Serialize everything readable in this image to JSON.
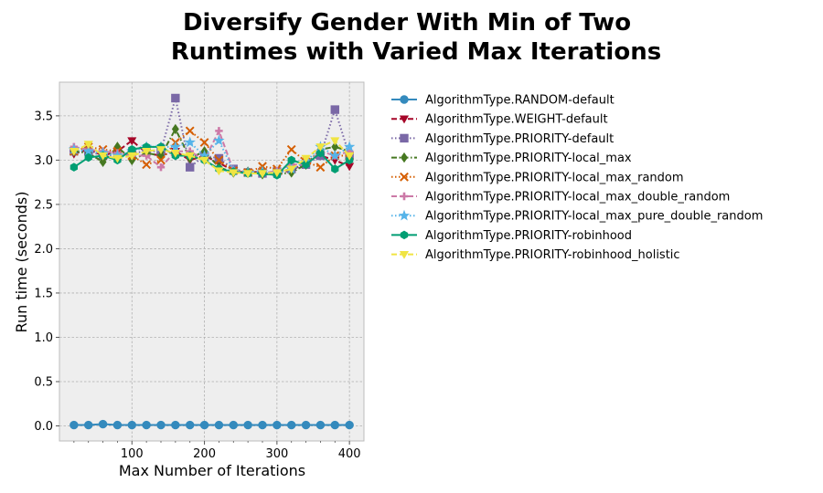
{
  "chart_data": {
    "type": "line",
    "title_lines": [
      "Diversify Gender With Min of Two",
      "Runtimes with Varied Max Iterations"
    ],
    "xlabel": "Max Number of Iterations",
    "ylabel": "Run time (seconds)",
    "xlim": [
      0,
      420
    ],
    "ylim": [
      -0.17,
      3.88
    ],
    "xticks": [
      100,
      200,
      300,
      400
    ],
    "xticks_minor": [
      20,
      40,
      60,
      80,
      120,
      140,
      160,
      180,
      220,
      240,
      260,
      280,
      320,
      340,
      360,
      380
    ],
    "yticks": [
      0.0,
      0.5,
      1.0,
      1.5,
      2.0,
      2.5,
      3.0,
      3.5
    ],
    "ytick_labels": [
      "0.0",
      "0.5",
      "1.0",
      "1.5",
      "2.0",
      "2.5",
      "3.0",
      "3.5"
    ],
    "grid": true,
    "legend_position": "outside-right",
    "x": [
      20,
      40,
      60,
      80,
      100,
      120,
      140,
      160,
      180,
      200,
      220,
      240,
      260,
      280,
      300,
      320,
      340,
      360,
      380,
      400
    ],
    "series": [
      {
        "name": "AlgorithmType.RANDOM-default",
        "color": "#348ABD",
        "dash": "solid",
        "marker": "circle",
        "values": [
          0.01,
          0.01,
          0.02,
          0.01,
          0.01,
          0.01,
          0.01,
          0.01,
          0.01,
          0.01,
          0.01,
          0.01,
          0.01,
          0.01,
          0.01,
          0.01,
          0.01,
          0.01,
          0.01,
          0.01
        ]
      },
      {
        "name": "AlgorithmType.WEIGHT-default",
        "color": "#A60628",
        "dash": "dashed",
        "marker": "triangle-down",
        "values": [
          3.07,
          3.12,
          3.05,
          3.1,
          3.22,
          3.08,
          3.05,
          3.1,
          3.0,
          3.05,
          2.97,
          2.88,
          2.86,
          2.87,
          2.86,
          2.88,
          2.98,
          3.05,
          3.0,
          2.93
        ]
      },
      {
        "name": "AlgorithmType.PRIORITY-default",
        "color": "#7A68A6",
        "dash": "dotted",
        "marker": "square",
        "values": [
          3.1,
          3.1,
          3.05,
          3.05,
          3.08,
          3.1,
          3.1,
          3.7,
          2.92,
          3.05,
          3.02,
          2.9,
          2.86,
          2.85,
          2.87,
          2.9,
          2.95,
          3.05,
          3.57,
          3.05
        ]
      },
      {
        "name": "AlgorithmType.PRIORITY-local_max",
        "color": "#467821",
        "dash": "dashdot",
        "marker": "diamond",
        "values": [
          3.1,
          3.08,
          2.98,
          3.15,
          3.0,
          3.08,
          3.05,
          3.35,
          3.02,
          3.1,
          2.92,
          2.86,
          2.87,
          2.84,
          2.84,
          2.86,
          2.95,
          3.12,
          3.15,
          3.1
        ]
      },
      {
        "name": "AlgorithmType.PRIORITY-local_max_random",
        "color": "#D55E00",
        "dash": "dotted",
        "marker": "x",
        "values": [
          3.1,
          3.15,
          3.12,
          3.1,
          3.05,
          2.95,
          3.0,
          3.2,
          3.33,
          3.2,
          3.0,
          2.88,
          2.86,
          2.93,
          2.9,
          3.12,
          2.98,
          2.92,
          3.05,
          3.05
        ]
      },
      {
        "name": "AlgorithmType.PRIORITY-local_max_double_random",
        "color": "#CC79A7",
        "dash": "dashed",
        "marker": "plus",
        "values": [
          3.15,
          3.12,
          3.1,
          3.08,
          3.05,
          3.05,
          2.92,
          3.1,
          3.1,
          3.0,
          3.33,
          2.88,
          2.85,
          2.85,
          2.88,
          2.95,
          2.95,
          3.1,
          3.05,
          3.1
        ]
      },
      {
        "name": "AlgorithmType.PRIORITY-local_max_pure_double_random",
        "color": "#56B4E9",
        "dash": "dotted",
        "marker": "star",
        "values": [
          3.12,
          3.1,
          3.08,
          3.05,
          3.1,
          3.15,
          3.15,
          3.15,
          3.2,
          3.05,
          3.22,
          2.88,
          2.86,
          2.87,
          2.85,
          2.9,
          2.98,
          3.15,
          3.05,
          3.15
        ]
      },
      {
        "name": "AlgorithmType.PRIORITY-robinhood",
        "color": "#009E73",
        "dash": "solid",
        "marker": "hexagon",
        "values": [
          2.92,
          3.03,
          3.05,
          3.0,
          3.12,
          3.15,
          3.15,
          3.05,
          3.05,
          3.0,
          2.9,
          2.87,
          2.85,
          2.85,
          2.83,
          3.0,
          2.95,
          3.08,
          2.9,
          3.0
        ]
      },
      {
        "name": "AlgorithmType.PRIORITY-robinhood_holistic",
        "color": "#F0E442",
        "dash": "dashed",
        "marker": "triangle-down",
        "values": [
          3.1,
          3.18,
          3.05,
          3.02,
          3.05,
          3.1,
          3.12,
          3.08,
          3.05,
          3.0,
          2.88,
          2.86,
          2.85,
          2.85,
          2.86,
          2.9,
          3.02,
          3.15,
          3.22,
          3.05
        ]
      }
    ]
  }
}
